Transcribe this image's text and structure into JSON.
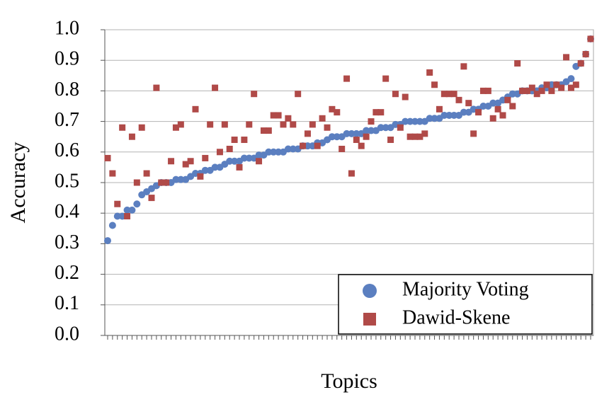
{
  "chart_data": {
    "type": "scatter",
    "y_label": "Accuracy",
    "x_label": "Topics",
    "categories": [
      null,
      null,
      null,
      null,
      null,
      null,
      null,
      null,
      null,
      null,
      null,
      null,
      null,
      null,
      null,
      null,
      null,
      null,
      null,
      null,
      null,
      null,
      null,
      null,
      null,
      null,
      null,
      null,
      null,
      null,
      null,
      null,
      null,
      null,
      null,
      null,
      null,
      null,
      null,
      null,
      null,
      null,
      null,
      null,
      null,
      null,
      null,
      null,
      null,
      null,
      null,
      null,
      null,
      null,
      null,
      null,
      null,
      null,
      null,
      null,
      null,
      null,
      null,
      null,
      null,
      null,
      null,
      null,
      null,
      null,
      null,
      null,
      null,
      null,
      null,
      null,
      null,
      null,
      null,
      null,
      null,
      null,
      null,
      null,
      null,
      null,
      null,
      null,
      null,
      null,
      null,
      null,
      null,
      null,
      null,
      null,
      null,
      null,
      null,
      null
    ],
    "series": [
      {
        "name": "Majority Voting",
        "color": "#5b7fc0",
        "marker": "circle",
        "values": [
          0.31,
          0.36,
          0.39,
          0.39,
          0.41,
          0.41,
          0.43,
          0.46,
          0.47,
          0.48,
          0.49,
          0.5,
          0.5,
          0.5,
          0.51,
          0.51,
          0.51,
          0.52,
          0.53,
          0.53,
          0.54,
          0.54,
          0.55,
          0.55,
          0.56,
          0.57,
          0.57,
          0.57,
          0.58,
          0.58,
          0.58,
          0.59,
          0.59,
          0.6,
          0.6,
          0.6,
          0.6,
          0.61,
          0.61,
          0.61,
          0.62,
          0.62,
          0.62,
          0.63,
          0.63,
          0.64,
          0.65,
          0.65,
          0.65,
          0.66,
          0.66,
          0.66,
          0.66,
          0.67,
          0.67,
          0.67,
          0.68,
          0.68,
          0.68,
          0.69,
          0.69,
          0.7,
          0.7,
          0.7,
          0.7,
          0.7,
          0.71,
          0.71,
          0.71,
          0.72,
          0.72,
          0.72,
          0.72,
          0.73,
          0.73,
          0.74,
          0.74,
          0.75,
          0.75,
          0.76,
          0.76,
          0.77,
          0.78,
          0.79,
          0.79,
          0.8,
          0.8,
          0.8,
          0.8,
          0.81,
          0.81,
          0.82,
          0.82,
          0.82,
          0.83,
          0.84,
          0.88,
          0.89,
          0.92,
          0.97
        ]
      },
      {
        "name": "Dawid-Skene",
        "color": "#b04a48",
        "marker": "square",
        "values": [
          0.58,
          0.53,
          0.43,
          0.68,
          0.39,
          0.65,
          0.5,
          0.68,
          0.53,
          0.45,
          0.81,
          0.5,
          0.5,
          0.57,
          0.68,
          0.69,
          0.56,
          0.57,
          0.74,
          0.52,
          0.58,
          0.69,
          0.81,
          0.6,
          0.69,
          0.61,
          0.64,
          0.55,
          0.64,
          0.69,
          0.79,
          0.57,
          0.67,
          0.67,
          0.72,
          0.72,
          0.69,
          0.71,
          0.69,
          0.79,
          0.62,
          0.66,
          0.69,
          0.62,
          0.71,
          0.68,
          0.74,
          0.73,
          0.61,
          0.84,
          0.53,
          0.64,
          0.62,
          0.65,
          0.7,
          0.73,
          0.73,
          0.84,
          0.64,
          0.79,
          0.68,
          0.78,
          0.65,
          0.65,
          0.65,
          0.66,
          0.86,
          0.82,
          0.74,
          0.79,
          0.79,
          0.79,
          0.77,
          0.88,
          0.76,
          0.66,
          0.73,
          0.8,
          0.8,
          0.71,
          0.74,
          0.72,
          0.77,
          0.75,
          0.89,
          0.8,
          0.8,
          0.81,
          0.79,
          0.8,
          0.82,
          0.8,
          0.82,
          0.81,
          0.91,
          0.81,
          0.82,
          0.89,
          0.92,
          0.97
        ]
      }
    ],
    "ylim": [
      0,
      1
    ],
    "yticks": [
      {
        "value": 0,
        "label": "0.0"
      },
      0.1,
      0.2,
      0.3,
      0.4,
      0.5,
      0.6,
      0.7,
      0.8,
      0.9,
      {
        "value": 1,
        "label": "1.0"
      }
    ],
    "grid": true,
    "legend": "lower right"
  }
}
